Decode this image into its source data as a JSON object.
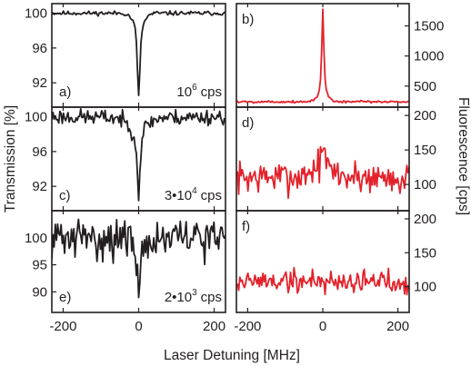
{
  "figure": {
    "ylabel_left": "Transmission [%]",
    "ylabel_right": "Fluorescence [cps]",
    "xlabel": "Laser Detuning [MHz]"
  },
  "colors": {
    "transmission": "#231f20",
    "fluorescence": "#e3222b",
    "axes": "#231f20"
  },
  "chart_data": [
    {
      "panel": "a)",
      "type": "line",
      "annotation_base": "10",
      "annotation_exp": "6",
      "annotation_unit": "cps",
      "xlim": [
        -230,
        230
      ],
      "ylim": [
        89.2,
        101.1
      ],
      "yticks": [
        92,
        96,
        100
      ],
      "xticks": [
        -200,
        0,
        200
      ],
      "series": [
        {
          "color": "#231f20",
          "noise": 0.12,
          "seed": 11,
          "x": [
            -230,
            -40,
            -25,
            -15,
            -10,
            -7,
            -5,
            -3,
            -2,
            -1,
            0,
            1,
            2,
            3,
            5,
            7,
            10,
            15,
            25,
            40,
            230
          ],
          "y": [
            100,
            100,
            99.7,
            99.1,
            98.4,
            97.3,
            95.8,
            93.5,
            92.2,
            91.0,
            90.4,
            90.9,
            91.9,
            93.2,
            95.5,
            97.1,
            98.3,
            99.0,
            99.7,
            100,
            100
          ]
        }
      ]
    },
    {
      "panel": "b)",
      "type": "line",
      "xlim": [
        -230,
        230
      ],
      "ylim": [
        150,
        1870
      ],
      "yticks": [
        500,
        1000,
        1500
      ],
      "xticks": [
        -200,
        0,
        200
      ],
      "series": [
        {
          "color": "#e3222b",
          "noise": 10,
          "seed": 5,
          "x": [
            -230,
            -40,
            -25,
            -15,
            -10,
            -7,
            -5,
            -3,
            -2,
            -1,
            0,
            1,
            2,
            3,
            5,
            7,
            10,
            15,
            25,
            40,
            230
          ],
          "y": [
            240,
            240,
            270,
            330,
            400,
            520,
            720,
            1080,
            1350,
            1620,
            1770,
            1640,
            1380,
            1100,
            740,
            540,
            410,
            330,
            270,
            240,
            240
          ]
        }
      ]
    },
    {
      "panel": "c)",
      "type": "line",
      "annotation_base": "3•10",
      "annotation_exp": "4",
      "annotation_unit": "cps",
      "xlim": [
        -230,
        230
      ],
      "ylim": [
        89.2,
        101.1
      ],
      "yticks": [
        92,
        96,
        100
      ],
      "xticks": [
        -200,
        0,
        200
      ],
      "series": [
        {
          "color": "#231f20",
          "noise": 0.45,
          "seed": 23,
          "x": [
            -230,
            -60,
            -40,
            -25,
            -15,
            -10,
            -7,
            -5,
            -3,
            -2,
            -1,
            0,
            1,
            2,
            3,
            5,
            7,
            10,
            15,
            25,
            40,
            60,
            230
          ],
          "y": [
            100,
            99.9,
            99.5,
            98.9,
            98.2,
            97.5,
            96.5,
            95.2,
            93.5,
            92.2,
            91.1,
            90.2,
            91.0,
            92.3,
            93.8,
            95.5,
            96.7,
            97.8,
            98.6,
            99.2,
            99.6,
            99.9,
            100
          ]
        }
      ]
    },
    {
      "panel": "d)",
      "type": "line",
      "xlim": [
        -230,
        230
      ],
      "ylim": [
        62,
        212
      ],
      "yticks": [
        100,
        150,
        200
      ],
      "xticks": [
        -200,
        0,
        200
      ],
      "series": [
        {
          "color": "#e3222b",
          "noise": 12,
          "seed": 7,
          "x": [
            -230,
            -60,
            -40,
            -25,
            -15,
            -8,
            -5,
            -3,
            -1,
            0,
            1,
            3,
            5,
            8,
            15,
            25,
            40,
            60,
            230
          ],
          "y": [
            110,
            111,
            117,
            122,
            126,
            132,
            136,
            145,
            158,
            163,
            156,
            145,
            136,
            130,
            125,
            120,
            116,
            111,
            110
          ]
        }
      ]
    },
    {
      "panel": "e)",
      "type": "line",
      "annotation_base": "2•10",
      "annotation_exp": "3",
      "annotation_unit": "cps",
      "xlim": [
        -230,
        230
      ],
      "ylim": [
        86.2,
        105
      ],
      "yticks": [
        90,
        95,
        100
      ],
      "xticks": [
        -200,
        0,
        200
      ],
      "series": [
        {
          "color": "#231f20",
          "noise": 1.8,
          "seed": 31,
          "x": [
            -230,
            -40,
            -20,
            -10,
            -5,
            -2,
            0,
            2,
            5,
            10,
            20,
            40,
            230
          ],
          "y": [
            100,
            99.8,
            99,
            97.5,
            95,
            92.5,
            90.5,
            92.5,
            95,
            97.5,
            99,
            99.8,
            100
          ]
        }
      ]
    },
    {
      "panel": "f)",
      "type": "line",
      "xlim": [
        -230,
        230
      ],
      "ylim": [
        62,
        212
      ],
      "yticks": [
        100,
        150,
        200
      ],
      "xticks": [
        -200,
        0,
        200
      ],
      "series": [
        {
          "color": "#e3222b",
          "noise": 9,
          "seed": 19,
          "x": [
            -230,
            230
          ],
          "y": [
            108,
            108
          ]
        }
      ]
    }
  ]
}
